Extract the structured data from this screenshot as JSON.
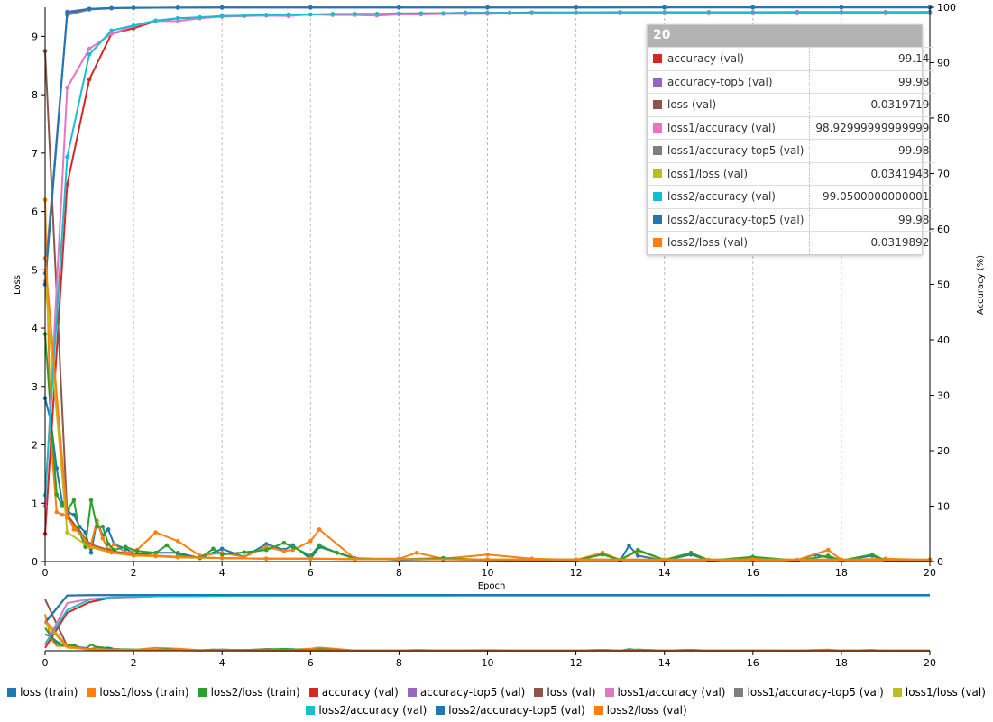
{
  "chart_data": {
    "type": "line",
    "xlabel": "Epoch",
    "ylabel_left": "Loss",
    "ylabel_right": "Accuracy (%)",
    "xlim": [
      0,
      20
    ],
    "ylim_left": [
      0,
      9.5
    ],
    "ylim_right": [
      0,
      100
    ],
    "x_ticks": [
      0,
      2,
      4,
      6,
      8,
      10,
      12,
      14,
      16,
      18,
      20
    ],
    "y_left_ticks": [
      0,
      1,
      2,
      3,
      4,
      5,
      6,
      7,
      8,
      9
    ],
    "y_right_ticks": [
      0,
      10,
      20,
      30,
      40,
      50,
      60,
      70,
      80,
      90,
      100
    ],
    "grid": "vertical dashed at even epochs",
    "legend_position": "bottom",
    "tooltip": {
      "epoch": "20",
      "rows": [
        {
          "name": "accuracy (val)",
          "value": "99.14",
          "color": "#d62728"
        },
        {
          "name": "accuracy-top5 (val)",
          "value": "99.98",
          "color": "#9467bd"
        },
        {
          "name": "loss (val)",
          "value": "0.0319719",
          "color": "#8c564b"
        },
        {
          "name": "loss1/accuracy (val)",
          "value": "98.92999999999999",
          "color": "#e377c2"
        },
        {
          "name": "loss1/accuracy-top5 (val)",
          "value": "99.98",
          "color": "#7f7f7f"
        },
        {
          "name": "loss1/loss (val)",
          "value": "0.0341943",
          "color": "#bcbd22"
        },
        {
          "name": "loss2/accuracy (val)",
          "value": "99.0500000000001",
          "color": "#17becf"
        },
        {
          "name": "loss2/accuracy-top5 (val)",
          "value": "99.98",
          "color": "#1f77b4"
        },
        {
          "name": "loss2/loss (val)",
          "value": "0.0319892",
          "color": "#ff7f0e"
        }
      ]
    },
    "series": [
      {
        "name": "loss (train)",
        "color": "#1f77b4",
        "axis": "left",
        "x": [
          0,
          0.13,
          0.26,
          0.39,
          0.52,
          0.65,
          0.78,
          0.91,
          1.04,
          1.17,
          1.3,
          1.43,
          1.56,
          1.82,
          2.08,
          2.5,
          3,
          3.5,
          4,
          4.5,
          5,
          5.4,
          5.6,
          6,
          6.2,
          7,
          8,
          9,
          10,
          11,
          12,
          12.6,
          13,
          13.2,
          13.4,
          14,
          14.6,
          15,
          16,
          17,
          17.4,
          18,
          18.7,
          19,
          20
        ],
        "y": [
          2.8,
          2.4,
          1.6,
          1.0,
          0.85,
          0.8,
          0.6,
          0.5,
          0.15,
          0.7,
          0.45,
          0.55,
          0.3,
          0.22,
          0.12,
          0.15,
          0.15,
          0.06,
          0.22,
          0.08,
          0.3,
          0.2,
          0.28,
          0.05,
          0.25,
          0.06,
          0.03,
          0.04,
          0.03,
          0.02,
          0.02,
          0.15,
          0.02,
          0.27,
          0.1,
          0.02,
          0.12,
          0.02,
          0.06,
          0.02,
          0.12,
          0.02,
          0.1,
          0.02,
          0.02
        ]
      },
      {
        "name": "loss1/loss (train)",
        "color": "#ff7f0e",
        "axis": "left",
        "x": [
          0,
          0.13,
          0.26,
          0.39,
          0.52,
          0.65,
          0.78,
          0.91,
          1.04,
          1.17,
          1.3,
          1.43,
          1.56,
          1.82,
          2.08,
          2.5,
          3,
          3.5,
          4,
          4.5,
          5,
          5.4,
          5.6,
          6,
          6.2,
          7,
          8,
          8.4,
          9,
          10,
          11,
          12,
          12.6,
          13,
          13.4,
          14,
          14.6,
          15,
          16,
          17,
          17.7,
          18,
          19,
          20
        ],
        "y": [
          6.2,
          2.1,
          0.85,
          0.8,
          0.8,
          0.55,
          0.5,
          0.35,
          0.3,
          0.7,
          0.4,
          0.2,
          0.3,
          0.15,
          0.2,
          0.5,
          0.35,
          0.1,
          0.15,
          0.08,
          0.25,
          0.18,
          0.2,
          0.35,
          0.55,
          0.05,
          0.05,
          0.15,
          0.05,
          0.12,
          0.05,
          0.03,
          0.15,
          0.03,
          0.18,
          0.03,
          0.15,
          0.03,
          0.05,
          0.03,
          0.2,
          0.03,
          0.05,
          0.03
        ]
      },
      {
        "name": "loss2/loss (train)",
        "color": "#2ca02c",
        "axis": "left",
        "x": [
          0,
          0.13,
          0.26,
          0.39,
          0.52,
          0.65,
          0.78,
          0.91,
          1.04,
          1.17,
          1.3,
          1.43,
          1.56,
          1.82,
          2.08,
          2.5,
          2.75,
          3,
          3.5,
          3.8,
          4,
          4.5,
          5,
          5.4,
          5.6,
          6,
          6.2,
          6.6,
          7,
          8,
          9,
          10,
          11,
          12,
          12.6,
          13,
          13.4,
          14,
          14.6,
          15,
          16,
          17,
          17.7,
          18,
          18.7,
          19,
          20
        ],
        "y": [
          3.9,
          2.5,
          1.15,
          0.95,
          0.9,
          1.05,
          0.5,
          0.25,
          1.05,
          0.6,
          0.6,
          0.3,
          0.2,
          0.25,
          0.18,
          0.15,
          0.28,
          0.12,
          0.06,
          0.22,
          0.12,
          0.16,
          0.2,
          0.32,
          0.25,
          0.1,
          0.28,
          0.15,
          0.05,
          0.04,
          0.06,
          0.03,
          0.02,
          0.02,
          0.12,
          0.03,
          0.2,
          0.03,
          0.15,
          0.02,
          0.08,
          0.02,
          0.1,
          0.02,
          0.12,
          0.02,
          0.02
        ]
      },
      {
        "name": "accuracy (val)",
        "color": "#d62728",
        "axis": "right",
        "x": [
          0,
          0.5,
          1,
          1.5,
          2,
          2.5,
          3,
          3.5,
          4,
          4.5,
          5,
          5.5,
          6,
          6.5,
          7,
          7.5,
          8,
          8.5,
          9,
          9.5,
          10,
          10.5,
          11,
          12,
          13,
          14,
          15,
          16,
          17,
          18,
          19,
          20
        ],
        "y": [
          5,
          68,
          87,
          95.2,
          96.2,
          97.5,
          98,
          98.1,
          98.4,
          98.4,
          98.6,
          98.6,
          98.7,
          98.7,
          98.8,
          98.8,
          98.8,
          98.9,
          98.9,
          99.0,
          99.0,
          99.0,
          99.05,
          99.05,
          99.1,
          99.1,
          99.1,
          99.1,
          99.12,
          99.12,
          99.13,
          99.14
        ]
      },
      {
        "name": "accuracy-top5 (val)",
        "color": "#9467bd",
        "axis": "right",
        "x": [
          0,
          0.5,
          1,
          1.5,
          2,
          3,
          4,
          6,
          8,
          10,
          12,
          14,
          16,
          18,
          20
        ],
        "y": [
          50,
          99.2,
          99.7,
          99.85,
          99.9,
          99.93,
          99.95,
          99.96,
          99.97,
          99.97,
          99.97,
          99.98,
          99.98,
          99.98,
          99.98
        ]
      },
      {
        "name": "loss (val)",
        "color": "#8c564b",
        "axis": "left",
        "x": [
          0,
          0.5,
          1,
          1.5,
          2,
          2.5,
          3,
          4,
          5,
          6,
          7,
          8,
          10,
          12,
          14,
          16,
          18,
          20
        ],
        "y": [
          8.75,
          0.8,
          0.3,
          0.18,
          0.12,
          0.1,
          0.08,
          0.06,
          0.05,
          0.05,
          0.04,
          0.04,
          0.035,
          0.034,
          0.033,
          0.033,
          0.032,
          0.032
        ]
      },
      {
        "name": "loss1/accuracy (val)",
        "color": "#e377c2",
        "axis": "right",
        "x": [
          0,
          0.5,
          1,
          1.5,
          2,
          2.5,
          3,
          3.5,
          4,
          4.5,
          5,
          5.5,
          6,
          6.5,
          7,
          7.5,
          8,
          8.5,
          9,
          9.5,
          10,
          10.5,
          11,
          12,
          13,
          14,
          15,
          16,
          17,
          18,
          19,
          20
        ],
        "y": [
          10,
          85.5,
          92.5,
          95.2,
          96.6,
          97.5,
          97.5,
          98.0,
          98.3,
          98.4,
          98.5,
          98.4,
          98.7,
          98.6,
          98.6,
          98.5,
          98.7,
          98.7,
          98.8,
          98.8,
          98.8,
          98.9,
          98.9,
          98.9,
          98.9,
          98.9,
          98.9,
          98.9,
          98.9,
          98.95,
          98.93,
          98.93
        ]
      },
      {
        "name": "loss1/accuracy-top5 (val)",
        "color": "#7f7f7f",
        "axis": "right",
        "x": [
          0,
          0.5,
          1,
          1.5,
          2,
          3,
          4,
          6,
          8,
          10,
          12,
          14,
          16,
          18,
          20
        ],
        "y": [
          52,
          98.6,
          99.6,
          99.8,
          99.9,
          99.93,
          99.95,
          99.96,
          99.97,
          99.97,
          99.97,
          99.98,
          99.98,
          99.98,
          99.98
        ]
      },
      {
        "name": "loss1/loss (val)",
        "color": "#bcbd22",
        "axis": "left",
        "x": [
          0,
          0.5,
          1,
          1.5,
          2,
          2.5,
          3,
          4,
          5,
          6,
          7,
          8,
          10,
          12,
          14,
          16,
          18,
          20
        ],
        "y": [
          4.8,
          0.5,
          0.25,
          0.15,
          0.1,
          0.09,
          0.07,
          0.06,
          0.05,
          0.05,
          0.045,
          0.04,
          0.038,
          0.036,
          0.035,
          0.035,
          0.034,
          0.0342
        ]
      },
      {
        "name": "loss2/accuracy (val)",
        "color": "#17becf",
        "axis": "right",
        "x": [
          0,
          0.5,
          1,
          1.5,
          2,
          2.5,
          3,
          3.5,
          4,
          4.5,
          5,
          5.5,
          6,
          6.5,
          7,
          7.5,
          8,
          8.5,
          9,
          9.5,
          10,
          10.5,
          11,
          12,
          13,
          14,
          15,
          16,
          17,
          18,
          19,
          20
        ],
        "y": [
          12,
          73,
          91.5,
          95.8,
          96.7,
          97.6,
          98.0,
          98.2,
          98.4,
          98.5,
          98.6,
          98.7,
          98.7,
          98.8,
          98.8,
          98.8,
          98.9,
          98.9,
          98.9,
          99.0,
          99.0,
          99.0,
          99.0,
          99.05,
          99.05,
          99.05,
          99.05,
          99.05,
          99.05,
          99.05,
          99.05,
          99.05
        ]
      },
      {
        "name": "loss2/accuracy-top5 (val)",
        "color": "#1f77b4",
        "axis": "right",
        "x": [
          0,
          0.5,
          1,
          1.5,
          2,
          3,
          4,
          6,
          8,
          10,
          12,
          14,
          16,
          18,
          20
        ],
        "y": [
          50,
          99.0,
          99.7,
          99.85,
          99.9,
          99.93,
          99.95,
          99.96,
          99.97,
          99.97,
          99.97,
          99.98,
          99.98,
          99.98,
          99.98
        ]
      },
      {
        "name": "loss2/loss (val)",
        "color": "#ff7f0e",
        "axis": "left",
        "x": [
          0,
          0.5,
          1,
          1.5,
          2,
          2.5,
          3,
          4,
          5,
          6,
          7,
          8,
          10,
          12,
          14,
          16,
          18,
          20
        ],
        "y": [
          5.2,
          0.75,
          0.28,
          0.16,
          0.11,
          0.1,
          0.08,
          0.06,
          0.05,
          0.05,
          0.04,
          0.04,
          0.035,
          0.034,
          0.033,
          0.033,
          0.032,
          0.032
        ]
      }
    ]
  }
}
